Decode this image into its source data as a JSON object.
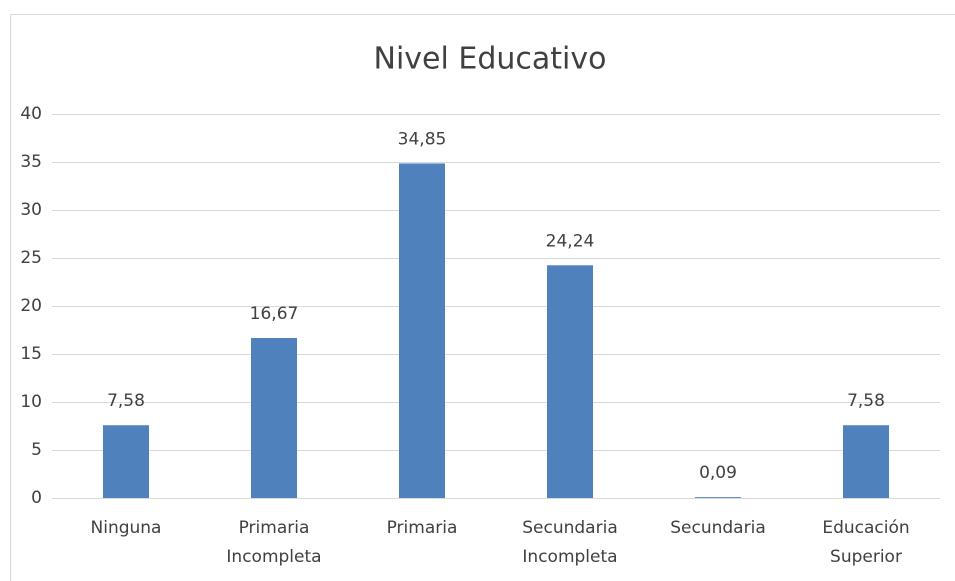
{
  "chart_data": {
    "type": "bar",
    "title": "Nivel Educativo",
    "categories": [
      [
        "Ninguna"
      ],
      [
        "Primaria",
        "Incompleta"
      ],
      [
        "Primaria"
      ],
      [
        "Secundaria",
        "Incompleta"
      ],
      [
        "Secundaria"
      ],
      [
        "Educación",
        "Superior"
      ]
    ],
    "values": [
      7.58,
      16.67,
      34.85,
      24.24,
      0.09,
      7.58
    ],
    "value_labels": [
      "7,58",
      "16,67",
      "34,85",
      "24,24",
      "0,09",
      "7,58"
    ],
    "color": "#4f81bd",
    "ylim": [
      0,
      40
    ],
    "yticks": [
      0,
      5,
      10,
      15,
      20,
      25,
      30,
      35,
      40
    ],
    "grid": true
  }
}
